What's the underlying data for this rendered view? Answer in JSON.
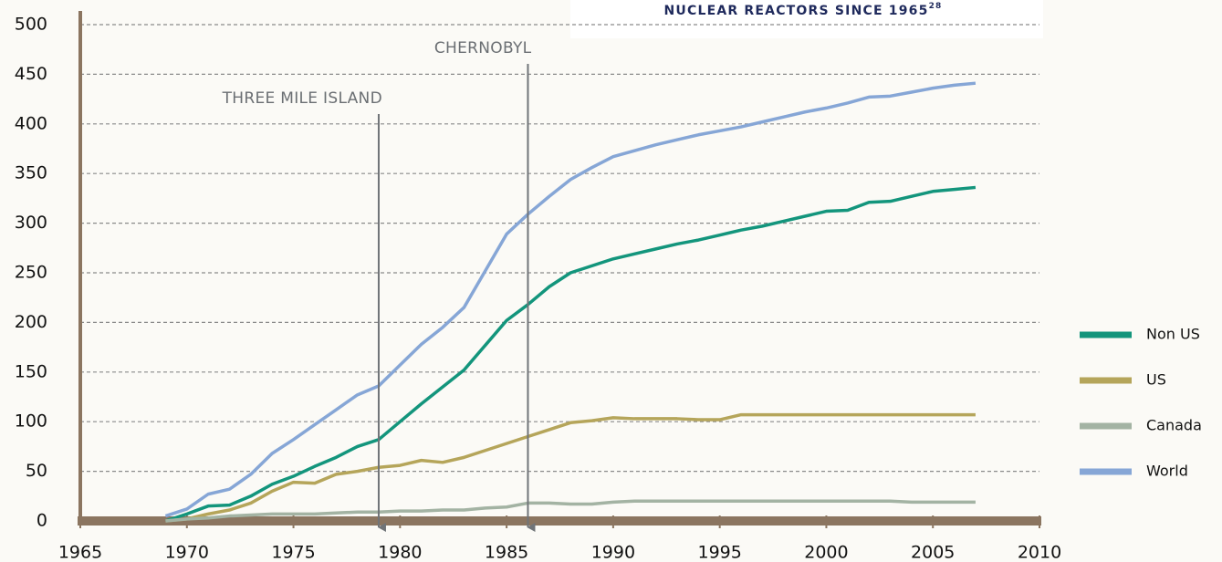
{
  "chart_data": {
    "type": "line",
    "title": "NUCLEAR REACTORS SINCE 1965",
    "title_note": "28",
    "x": [
      1969,
      1970,
      1971,
      1972,
      1973,
      1974,
      1975,
      1976,
      1977,
      1978,
      1979,
      1980,
      1981,
      1982,
      1983,
      1984,
      1985,
      1986,
      1987,
      1988,
      1989,
      1990,
      1991,
      1992,
      1993,
      1994,
      1995,
      1996,
      1997,
      1998,
      1999,
      2000,
      2001,
      2002,
      2003,
      2004,
      2005,
      2006,
      2007
    ],
    "series": [
      {
        "name": "Non US",
        "color": "#13957c",
        "values": [
          0,
          7,
          15,
          16,
          25,
          37,
          45,
          55,
          64,
          75,
          82,
          100,
          118,
          135,
          152,
          177,
          202,
          218,
          236,
          250,
          257,
          264,
          269,
          274,
          279,
          283,
          288,
          293,
          297,
          302,
          307,
          312,
          313,
          321,
          322,
          327,
          332,
          334,
          336
        ]
      },
      {
        "name": "US",
        "color": "#b5a55a",
        "values": [
          0,
          2,
          7,
          11,
          18,
          30,
          39,
          38,
          47,
          50,
          54,
          56,
          61,
          59,
          64,
          71,
          78,
          85,
          92,
          99,
          101,
          104,
          103,
          103,
          103,
          102,
          102,
          107,
          107,
          107,
          107,
          107,
          107,
          107,
          107,
          107,
          107,
          107,
          107
        ]
      },
      {
        "name": "Canada",
        "color": "#a3b3a3",
        "values": [
          0,
          2,
          3,
          5,
          6,
          7,
          7,
          7,
          8,
          9,
          9,
          10,
          10,
          11,
          11,
          13,
          14,
          18,
          18,
          17,
          17,
          19,
          20,
          20,
          20,
          20,
          20,
          20,
          20,
          20,
          20,
          20,
          20,
          20,
          20,
          19,
          19,
          19,
          19
        ]
      },
      {
        "name": "World",
        "color": "#86a6d6",
        "values": [
          5,
          12,
          27,
          32,
          47,
          68,
          82,
          97,
          112,
          127,
          136,
          157,
          178,
          195,
          215,
          252,
          289,
          309,
          327,
          344,
          356,
          367,
          373,
          379,
          384,
          389,
          393,
          397,
          402,
          407,
          412,
          416,
          421,
          427,
          428,
          432,
          436,
          439,
          441
        ]
      }
    ],
    "annotations": [
      {
        "text": "THREE MILE ISLAND",
        "x": 1979
      },
      {
        "text": "CHERNOBYL",
        "x": 1986
      }
    ],
    "xlim": [
      1965,
      2010
    ],
    "xticks": [
      1965,
      1970,
      1975,
      1980,
      1985,
      1990,
      1995,
      2000,
      2005,
      2010
    ],
    "ylim": [
      0,
      500
    ],
    "yticks": [
      0,
      50,
      100,
      150,
      200,
      250,
      300,
      350,
      400,
      450,
      500
    ],
    "grid": true,
    "legend": "right"
  }
}
